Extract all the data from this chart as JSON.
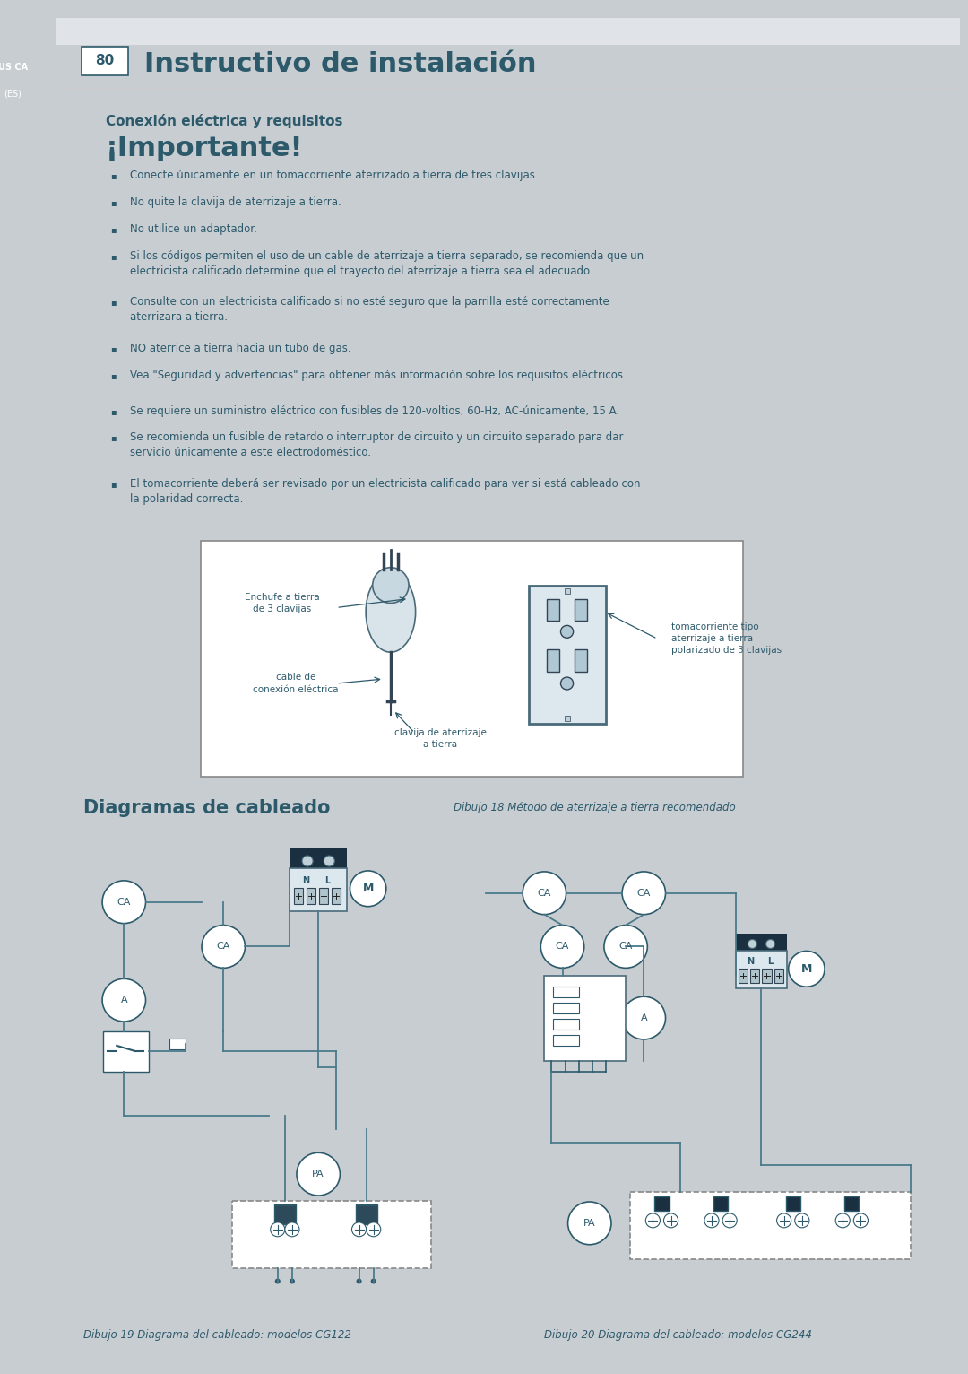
{
  "page_bg": "#c8cdd2",
  "content_bg": "#ffffff",
  "sidebar_color": "#8a9ba8",
  "text_color": "#2d5a6b",
  "title_text": "Instructivo de instalación",
  "page_num": "80",
  "page_label": "US CA",
  "page_label2": "(ES)",
  "section_title": "Conexión eléctrica y requisitos",
  "important_title": "¡Importante!",
  "bullet_points_1": [
    "Conecte únicamente en un tomacorriente aterrizado a tierra de tres clavijas.",
    "No quite la clavija de aterrizaje a tierra.",
    "No utilice un adaptador.",
    "Si los códigos permiten el uso de un cable de aterrizaje a tierra separado, se recomienda que un electricista calificado determine que el trayecto del aterrizaje a tierra sea el adecuado.",
    "Consulte con un electricista calificado si no esté seguro que la parrilla esté correctamente aterrizara a tierra.",
    "NO aterrice a tierra hacia un tubo de gas.",
    "Vea \"Seguridad y advertencias\" para obtener más información sobre los requisitos eléctricos."
  ],
  "bullet_points_2": [
    "Se requiere un suministro eléctrico con fusibles de 120-voltios, 60-Hz, AC-únicamente, 15 A.",
    "Se recomienda un fusible de retardo o interruptor de circuito y un circuito separado para dar servicio únicamente a este electrodoméstico.",
    "El tomacorriente deberá ser revisado por un electricista calificado para ver si está cableado con la polaridad correcta."
  ],
  "fig18_caption": "Dibujo 18 Método de aterrizaje a tierra recomendado",
  "fig18_labels": {
    "enchufe": "Enchufe a tierra\nde 3 clavijas",
    "cable": "cable de\nconexión eléctrica",
    "clavija": "clavija de aterrizaje\na tierra",
    "tomacorriente": "tomacorriente tipo\naterrizaje a tierra\npolarizado de 3 clavijas"
  },
  "wiring_title": "Diagramas de cableado",
  "fig19_caption": "Dibujo 19 Diagrama del cableado: modelos CG122",
  "fig20_caption": "Dibujo 20 Diagrama del cableado: modelos CG244"
}
